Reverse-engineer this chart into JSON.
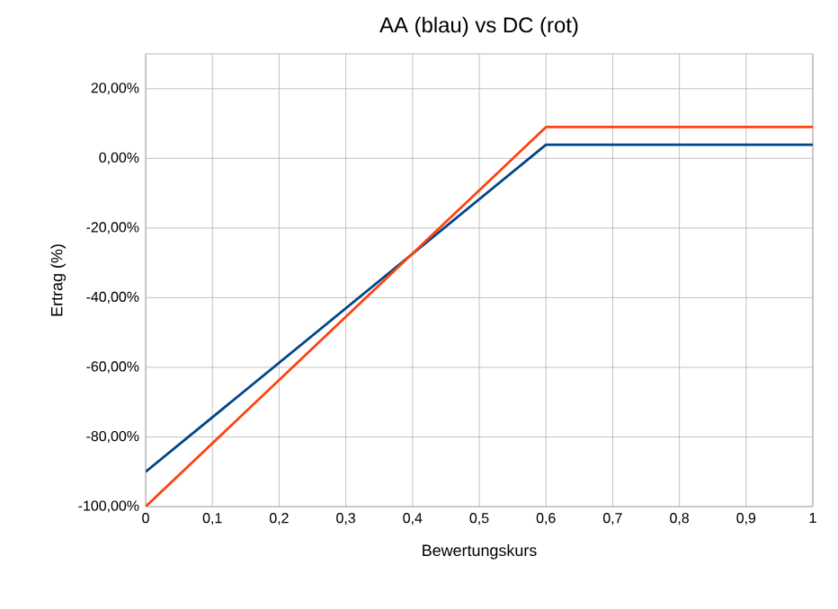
{
  "chart_data": {
    "type": "line",
    "title": "AA (blau) vs DC (rot)",
    "xlabel": "Bewertungskurs",
    "ylabel": "Ertrag (%)",
    "x": [
      0,
      0.6,
      1
    ],
    "series": [
      {
        "color": "#004586",
        "values": [
          -90,
          3.9,
          3.9
        ]
      },
      {
        "color": "#ff420e",
        "values": [
          -100,
          9,
          9
        ]
      }
    ],
    "xlim": [
      0,
      1
    ],
    "ylim": [
      -100,
      30
    ],
    "xticks": [
      0,
      {
        "value": 0.1,
        "label": "0,1"
      },
      {
        "value": 0.2,
        "label": "0,2"
      },
      {
        "value": 0.3,
        "label": "0,3"
      },
      {
        "value": 0.4,
        "label": "0,4"
      },
      {
        "value": 0.5,
        "label": "0,5"
      },
      {
        "value": 0.6,
        "label": "0,6"
      },
      {
        "value": 0.7,
        "label": "0,7"
      },
      {
        "value": 0.8,
        "label": "0,8"
      },
      {
        "value": 0.9,
        "label": "0,9"
      },
      1
    ],
    "yticks": [
      {
        "value": -100,
        "label": "-100,00%"
      },
      {
        "value": -80,
        "label": "-80,00%"
      },
      {
        "value": -60,
        "label": "-60,00%"
      },
      {
        "value": -40,
        "label": "-40,00%"
      },
      {
        "value": -20,
        "label": "-20,00%"
      },
      {
        "value": 0,
        "label": "0,00%"
      },
      {
        "value": 20,
        "label": "20,00%"
      }
    ],
    "grid": true,
    "marker": "none",
    "line_style": "solid"
  }
}
